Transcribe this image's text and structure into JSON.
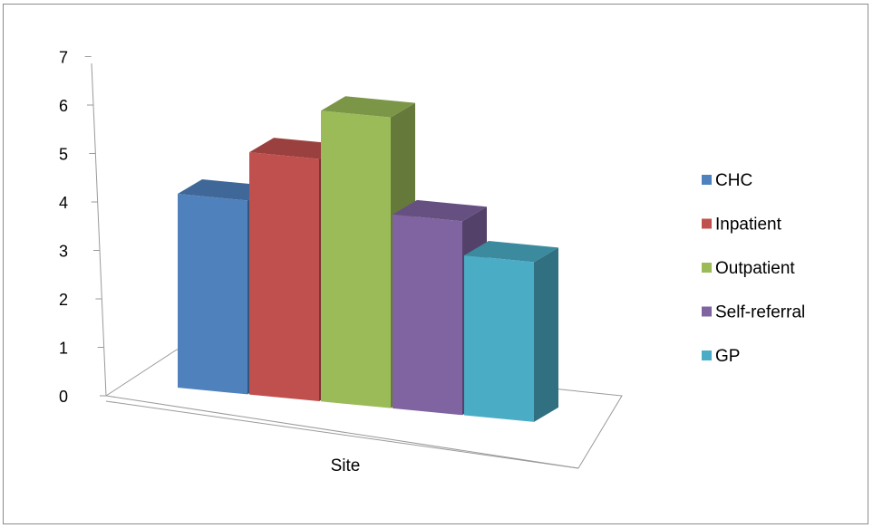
{
  "chart_data": {
    "type": "bar",
    "categories": [
      "Site"
    ],
    "series": [
      {
        "name": "CHC",
        "values": [
          4
        ],
        "color": "#4f81bd"
      },
      {
        "name": "Inpatient",
        "values": [
          5
        ],
        "color": "#c0504d"
      },
      {
        "name": "Outpatient",
        "values": [
          6
        ],
        "color": "#9bbb59"
      },
      {
        "name": "Self-referral",
        "values": [
          4
        ],
        "color": "#8064a2"
      },
      {
        "name": "GP",
        "values": [
          3.3
        ],
        "color": "#4bacc6"
      }
    ],
    "y_ticks": [
      "0",
      "1",
      "2",
      "3",
      "4",
      "5",
      "6",
      "7"
    ],
    "ylim": [
      0,
      7
    ],
    "title": "",
    "xlabel": "",
    "ylabel": "",
    "legend_position": "right",
    "three_d": true,
    "grid": false
  }
}
